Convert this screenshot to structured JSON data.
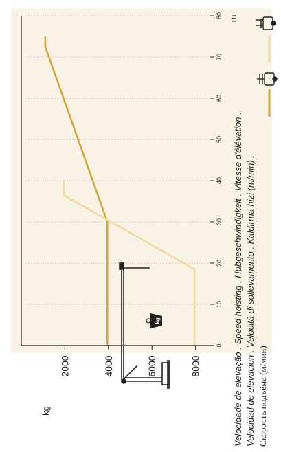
{
  "colors": {
    "panel": "#f8f3e5",
    "series_dark": "#d3a63a",
    "series_light": "#f1d9a0",
    "grid": "#c8c2b4",
    "axis": "#222222"
  },
  "icons": {
    "crane": "crane-icon",
    "weight": "weight-icon",
    "hoist_single": "hoist-single-icon",
    "hoist_double": "hoist-double-icon"
  },
  "weight_badge": "kg",
  "chart_data": {
    "type": "line",
    "orientation": "rotated-90-clockwise",
    "x": {
      "label": "m",
      "ticks": [
        0,
        10,
        20,
        30,
        40,
        50,
        60,
        70,
        80
      ],
      "range": [
        0,
        80
      ]
    },
    "y": {
      "label": "kg",
      "ticks": [
        2000,
        4000,
        6000,
        8000
      ],
      "range": [
        0,
        8800
      ]
    },
    "grid": "x-major-dotted",
    "series": [
      {
        "key": "dark",
        "points": [
          [
            0,
            3950
          ],
          [
            30,
            3950
          ],
          [
            72.5,
            1100
          ],
          [
            75,
            1100
          ]
        ]
      },
      {
        "key": "light",
        "points": [
          [
            0,
            7950
          ],
          [
            18.5,
            7950
          ],
          [
            36.5,
            1950
          ],
          [
            40,
            1950
          ]
        ]
      }
    ],
    "caption": [
      "Velocidade de elevação . Speed hoisting . Hubgeschwindigkeit . Vitesse d'élévation .",
      "Velocidad de elevacion . Velocità di sollevamento . Kaldirma hizi (m/min) .",
      "Скорость подъёма (м/мин)"
    ]
  }
}
